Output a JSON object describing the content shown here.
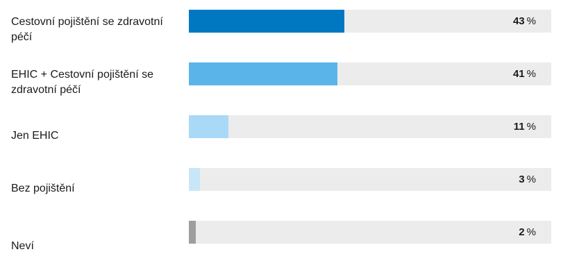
{
  "chart_data": {
    "type": "bar",
    "orientation": "horizontal",
    "title": "",
    "xlabel": "",
    "ylabel": "",
    "xlim": [
      0,
      100
    ],
    "unit": "%",
    "grid": false,
    "legend": "none",
    "categories": [
      "Cestovní pojištění se zdravotní péčí",
      "EHIC + Cestovní pojištění se zdravotní péčí",
      "Jen EHIC",
      "Bez pojištění",
      "Neví"
    ],
    "values": [
      43,
      41,
      11,
      3,
      2
    ],
    "colors": [
      "#0078c1",
      "#5ab4e9",
      "#a9d9f6",
      "#c9e6f9",
      "#9e9e9e"
    ],
    "track_color": "#ececec"
  }
}
